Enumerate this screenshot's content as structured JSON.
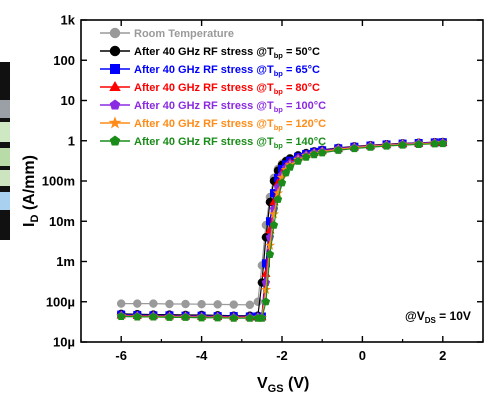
{
  "chart_data": {
    "type": "line",
    "title": "",
    "xlabel": {
      "main": "V",
      "sub": "GS",
      "suffix": " (V)"
    },
    "ylabel": {
      "main": "I",
      "sub": "D",
      "suffix": " (A/mm)"
    },
    "xlim": [
      -7,
      3
    ],
    "ylim": [
      1e-05,
      1000
    ],
    "yscale": "log",
    "x_ticks": [
      -6,
      -4,
      -2,
      0,
      2
    ],
    "x_tick_labels": [
      "-6",
      "-4",
      "-2",
      "0",
      "2"
    ],
    "y_ticks": [
      1e-05,
      0.0001,
      0.001,
      0.01,
      0.1,
      1,
      10,
      100,
      1000
    ],
    "y_tick_labels": [
      "10µ",
      "100µ",
      "1m",
      "10m",
      "100m",
      "1",
      "10",
      "100",
      "1k"
    ],
    "grid": false,
    "legend_position": "top-left",
    "annotation": {
      "prefix": "@V",
      "sub": "DS",
      "suffix": " = 10V"
    },
    "x": [
      -6.0,
      -5.6,
      -5.2,
      -4.8,
      -4.4,
      -4.0,
      -3.6,
      -3.2,
      -2.8,
      -2.6,
      -2.5,
      -2.4,
      -2.3,
      -2.2,
      -2.1,
      -2.0,
      -1.9,
      -1.8,
      -1.6,
      -1.4,
      -1.2,
      -1.0,
      -0.6,
      -0.2,
      0.2,
      0.6,
      1.0,
      1.4,
      1.8,
      2.0
    ],
    "series": [
      {
        "name_parts": [
          "Room Temperature",
          "",
          ""
        ],
        "color": "#9a9a9a",
        "marker": "circle",
        "values": [
          9e-05,
          9e-05,
          9e-05,
          8.8e-05,
          8.8e-05,
          8.7e-05,
          8.6e-05,
          8.5e-05,
          8.4e-05,
          0.0001,
          0.0008,
          0.008,
          0.04,
          0.12,
          0.2,
          0.27,
          0.32,
          0.37,
          0.44,
          0.5,
          0.55,
          0.6,
          0.67,
          0.73,
          0.78,
          0.82,
          0.86,
          0.89,
          0.92,
          0.93
        ]
      },
      {
        "name_parts": [
          "After 40 GHz RF stress @T",
          "bp",
          " = 50°C"
        ],
        "color": "#000000",
        "marker": "circle",
        "values": [
          5e-05,
          4.9e-05,
          4.8e-05,
          4.8e-05,
          4.7e-05,
          4.7e-05,
          4.6e-05,
          4.5e-05,
          4.5e-05,
          4.5e-05,
          0.0003,
          0.004,
          0.03,
          0.1,
          0.18,
          0.25,
          0.31,
          0.36,
          0.43,
          0.49,
          0.54,
          0.59,
          0.66,
          0.72,
          0.77,
          0.82,
          0.86,
          0.89,
          0.92,
          0.93
        ]
      },
      {
        "name_parts": [
          "After 40 GHz RF stress @T",
          "bp",
          " = 65°C"
        ],
        "color": "#0000ff",
        "marker": "square",
        "values": [
          4.8e-05,
          4.7e-05,
          4.6e-05,
          4.6e-05,
          4.5e-05,
          4.5e-05,
          4.4e-05,
          4.4e-05,
          4.3e-05,
          4.3e-05,
          4.3e-05,
          0.0009,
          0.01,
          0.05,
          0.12,
          0.2,
          0.26,
          0.32,
          0.4,
          0.47,
          0.53,
          0.58,
          0.65,
          0.71,
          0.76,
          0.81,
          0.85,
          0.88,
          0.91,
          0.92
        ]
      },
      {
        "name_parts": [
          "After 40 GHz RF stress @T",
          "bp",
          " = 80°C"
        ],
        "color": "#ff0000",
        "marker": "triangle",
        "values": [
          4.6e-05,
          4.5e-05,
          4.5e-05,
          4.4e-05,
          4.4e-05,
          4.3e-05,
          4.3e-05,
          4.2e-05,
          4.2e-05,
          4.2e-05,
          4.2e-05,
          0.0005,
          0.006,
          0.03,
          0.09,
          0.16,
          0.23,
          0.29,
          0.38,
          0.45,
          0.51,
          0.56,
          0.64,
          0.7,
          0.75,
          0.8,
          0.84,
          0.87,
          0.9,
          0.91
        ]
      },
      {
        "name_parts": [
          "After 40 GHz RF stress @T",
          "bp",
          " = 100°C"
        ],
        "color": "#8a2be2",
        "marker": "pentagon",
        "values": [
          4.5e-05,
          4.4e-05,
          4.4e-05,
          4.3e-05,
          4.3e-05,
          4.2e-05,
          4.2e-05,
          4.1e-05,
          4.1e-05,
          4.1e-05,
          4.1e-05,
          0.0003,
          0.004,
          0.02,
          0.07,
          0.14,
          0.21,
          0.27,
          0.36,
          0.44,
          0.5,
          0.55,
          0.63,
          0.69,
          0.74,
          0.79,
          0.83,
          0.86,
          0.89,
          0.9
        ]
      },
      {
        "name_parts": [
          "After 40 GHz RF stress @T",
          "bp",
          " = 120°C"
        ],
        "color": "#ff8c1a",
        "marker": "star",
        "values": [
          4.4e-05,
          4.3e-05,
          4.3e-05,
          4.2e-05,
          4.2e-05,
          4.1e-05,
          4.1e-05,
          4e-05,
          4e-05,
          4e-05,
          4e-05,
          0.0002,
          0.0025,
          0.015,
          0.05,
          0.12,
          0.19,
          0.25,
          0.34,
          0.42,
          0.48,
          0.53,
          0.61,
          0.67,
          0.72,
          0.77,
          0.81,
          0.84,
          0.87,
          0.88
        ]
      },
      {
        "name_parts": [
          "After 40 GHz RF stress @T",
          "bp",
          " = 140°C"
        ],
        "color": "#1a8c1a",
        "marker": "pentagon",
        "values": [
          4.3e-05,
          4.2e-05,
          4.2e-05,
          4.1e-05,
          4.1e-05,
          4e-05,
          4e-05,
          3.9e-05,
          3.9e-05,
          3.9e-05,
          3.9e-05,
          0.0001,
          0.0015,
          0.008,
          0.035,
          0.09,
          0.16,
          0.22,
          0.31,
          0.39,
          0.45,
          0.5,
          0.58,
          0.64,
          0.69,
          0.74,
          0.78,
          0.81,
          0.84,
          0.85
        ]
      }
    ]
  }
}
